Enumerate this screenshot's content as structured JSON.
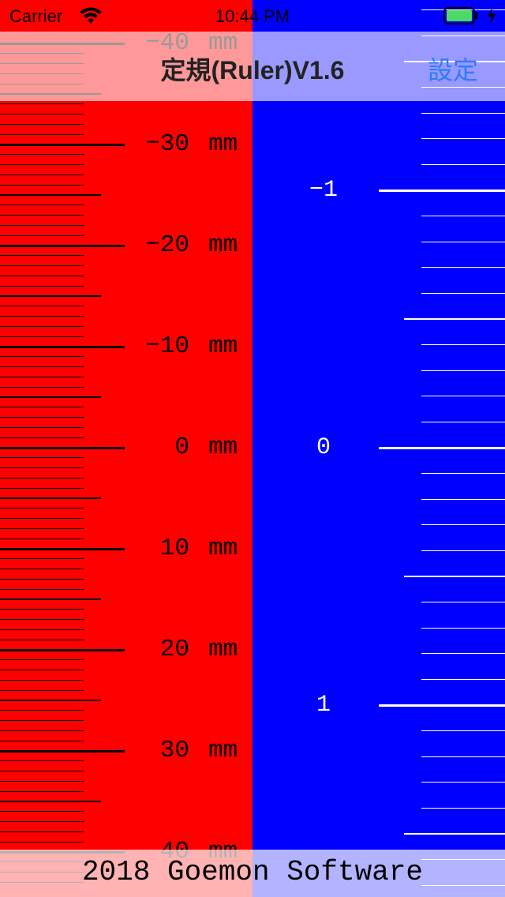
{
  "status_bar": {
    "carrier": "Carrier",
    "time": "10:44 PM"
  },
  "nav": {
    "title": "定規(Ruler)V1.6",
    "settings_label": "設定"
  },
  "mm_ruler": {
    "background": "#ff0000",
    "tick_color": "#000000",
    "unit": "mm",
    "labels": [
      "−40",
      "−30",
      "−20",
      "−10",
      "0",
      "10",
      "20",
      "30",
      "40"
    ]
  },
  "inch_ruler": {
    "background": "#0000ff",
    "tick_color": "#ffffff",
    "labels": [
      "−1",
      "0",
      "1"
    ]
  },
  "footer": {
    "text": "2018 Goemon Software"
  },
  "icons": [
    "wifi-icon",
    "battery-icon",
    "charging-bolt-icon"
  ]
}
